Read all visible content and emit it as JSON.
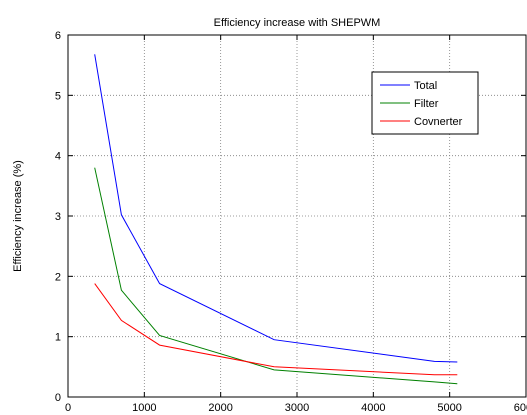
{
  "chart_data": {
    "type": "line",
    "title": "Efficiency increase with SHEPWM",
    "xlabel": "",
    "ylabel": "Efficiency increase (%)",
    "xlim": [
      0,
      6000
    ],
    "ylim": [
      0,
      6
    ],
    "xticks": [
      0,
      1000,
      2000,
      3000,
      4000,
      5000,
      6000
    ],
    "yticks": [
      0,
      1,
      2,
      3,
      4,
      5,
      6
    ],
    "grid": true,
    "legend": "top-right",
    "series": [
      {
        "name": "Total",
        "color": "#0000ff",
        "x": [
          350,
          700,
          1200,
          2700,
          4800,
          5100
        ],
        "y": [
          5.68,
          3.02,
          1.88,
          0.95,
          0.59,
          0.58
        ]
      },
      {
        "name": "Filter",
        "color": "#008000",
        "x": [
          350,
          700,
          1200,
          2700,
          4800,
          5100
        ],
        "y": [
          3.8,
          1.77,
          1.02,
          0.45,
          0.25,
          0.22
        ]
      },
      {
        "name": "Covnerter",
        "color": "#ff0000",
        "x": [
          350,
          700,
          1200,
          2700,
          4800,
          5100
        ],
        "y": [
          1.88,
          1.27,
          0.86,
          0.5,
          0.37,
          0.37
        ]
      }
    ]
  }
}
